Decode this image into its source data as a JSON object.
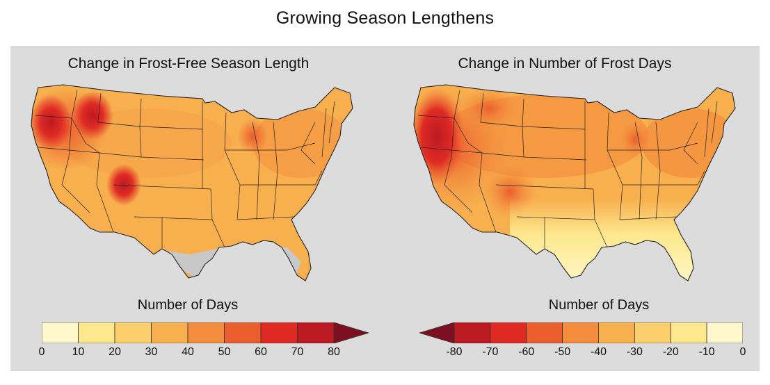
{
  "title": "Growing Season Lengthens",
  "colors": {
    "panel_background": "#dcdcdd",
    "no_data": "#c8c8c8",
    "scale": [
      "#fff8cc",
      "#fde88e",
      "#fbcf6b",
      "#f8b04e",
      "#f38c3c",
      "#eb5e2e",
      "#df2a24",
      "#bb1a22",
      "#7c1020"
    ]
  },
  "panels": [
    {
      "title": "Change in Frost-Free Season Length",
      "legend_title": "Number of Days",
      "ticks": [
        "0",
        "10",
        "20",
        "30",
        "40",
        "50",
        "60",
        "70",
        "80"
      ],
      "bins": [
        {
          "min": 0,
          "max": 10,
          "color": "#fff8cc"
        },
        {
          "min": 10,
          "max": 20,
          "color": "#fde88e"
        },
        {
          "min": 20,
          "max": 30,
          "color": "#fbcf6b"
        },
        {
          "min": 30,
          "max": 40,
          "color": "#f8b04e"
        },
        {
          "min": 40,
          "max": 50,
          "color": "#f38c3c"
        },
        {
          "min": 50,
          "max": 60,
          "color": "#eb5e2e"
        },
        {
          "min": 60,
          "max": 70,
          "color": "#df2a24"
        },
        {
          "min": 70,
          "max": 80,
          "color": "#bb1a22"
        }
      ],
      "overflow_arrow": {
        "side": "right",
        "color": "#7c1020"
      }
    },
    {
      "title": "Change in Number of Frost Days",
      "legend_title": "Number of Days",
      "ticks": [
        "-80",
        "-70",
        "-60",
        "-50",
        "-40",
        "-30",
        "-20",
        "-10",
        "0"
      ],
      "bins": [
        {
          "min": -80,
          "max": -70,
          "color": "#bb1a22"
        },
        {
          "min": -70,
          "max": -60,
          "color": "#df2a24"
        },
        {
          "min": -60,
          "max": -50,
          "color": "#eb5e2e"
        },
        {
          "min": -50,
          "max": -40,
          "color": "#f38c3c"
        },
        {
          "min": -40,
          "max": -30,
          "color": "#f8b04e"
        },
        {
          "min": -30,
          "max": -20,
          "color": "#fbcf6b"
        },
        {
          "min": -20,
          "max": -10,
          "color": "#fde88e"
        },
        {
          "min": -10,
          "max": 0,
          "color": "#fff8cc"
        }
      ],
      "overflow_arrow": {
        "side": "left",
        "color": "#7c1020"
      }
    }
  ]
}
